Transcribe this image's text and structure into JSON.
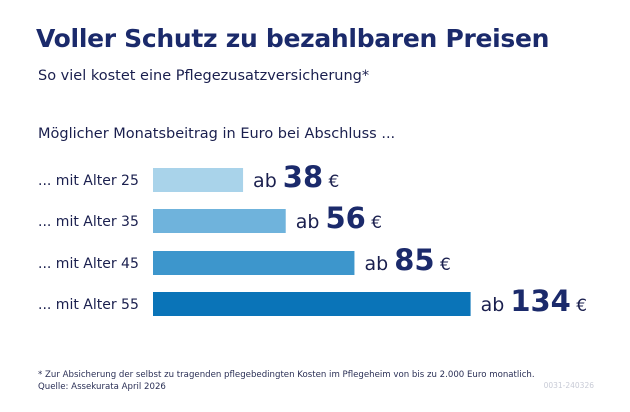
{
  "title": "Voller Schutz zu bezahlbaren Preisen",
  "subtitle": "So viel kostet eine Pflegezusatzversicherung*",
  "question": "Möglicher Monatsbeitrag in Euro bei Abschluss ...",
  "footnote": "* Zur Absicherung der selbst zu tragenden pflegebedingten Kosten im Pflegeheim von bis zu 2.000 Euro monatlich.",
  "source": "Quelle: Assekurata April 2026",
  "code": "0031-240326",
  "chart_data": {
    "type": "bar",
    "orientation": "horizontal",
    "categories": [
      "... mit Alter 25",
      "... mit Alter 35",
      "... mit Alter 45",
      "... mit Alter 55"
    ],
    "values": [
      38,
      56,
      85,
      134
    ],
    "value_prefix": "ab",
    "value_suffix": "€",
    "colors": [
      "#a9d3ea",
      "#6fb3dc",
      "#3d96cc",
      "#0a74b8"
    ],
    "grid": false
  }
}
